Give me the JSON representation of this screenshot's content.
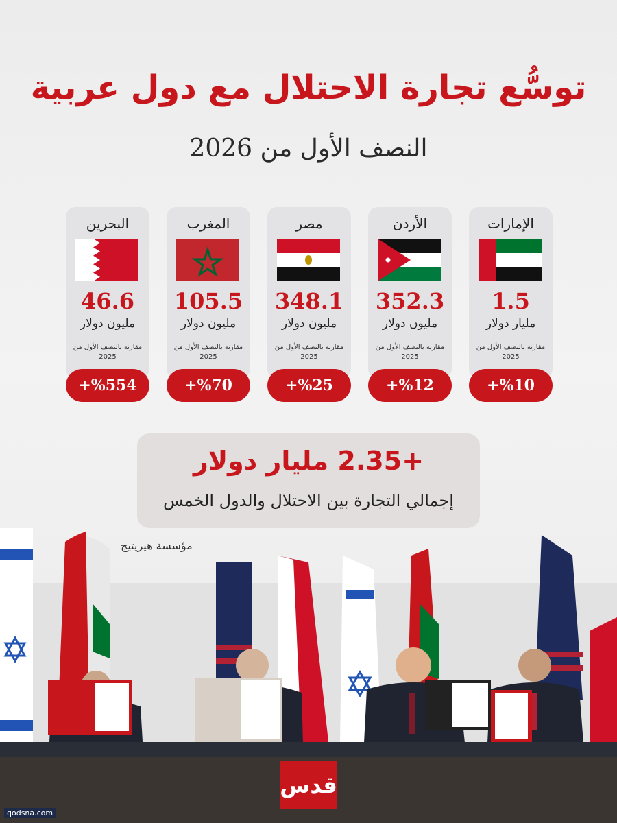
{
  "title": "توسُّع تجارة الاحتلال مع دول عربية",
  "subtitle": "النصف الأول من 2026",
  "countries": [
    {
      "name": "البحرين",
      "value": "46.6",
      "unit": "مليون دولار",
      "note": "مقارنة بالنصف الأول من 2025",
      "change": "%554+"
    },
    {
      "name": "المغرب",
      "value": "105.5",
      "unit": "مليون دولار",
      "note": "مقارنة بالنصف الأول من 2025",
      "change": "%70+"
    },
    {
      "name": "مصر",
      "value": "348.1",
      "unit": "مليون دولار",
      "note": "مقارنة بالنصف الأول من 2025",
      "change": "%25+"
    },
    {
      "name": "الأردن",
      "value": "352.3",
      "unit": "مليون دولار",
      "note": "مقارنة بالنصف الأول من 2025",
      "change": "%12+"
    },
    {
      "name": "الإمارات",
      "value": "1.5",
      "unit": "مليار دولار",
      "note": "مقارنة بالنصف الأول من 2025",
      "change": "%10+"
    }
  ],
  "total": {
    "value": "+2.35 مليار دولار",
    "caption": "إجمالي التجارة بين الاحتلال والدول الخمس"
  },
  "source": "مؤسسة هيريتيج",
  "logo": "قدس",
  "watermark": "qodsna.com",
  "colors": {
    "accent": "#c8161d",
    "card": "#e3e3e5"
  }
}
